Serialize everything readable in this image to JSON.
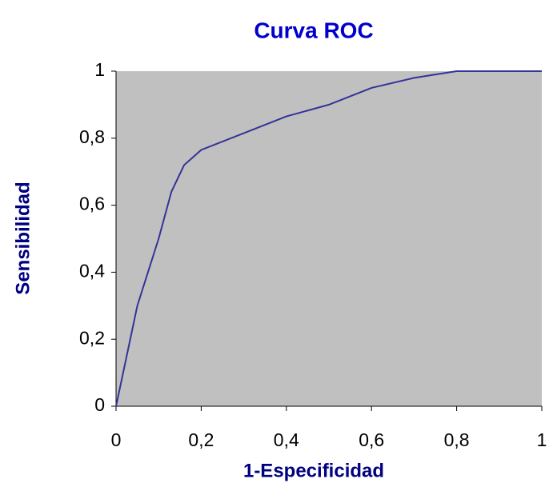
{
  "chart_data": {
    "type": "line",
    "title": "Curva ROC",
    "x_label": "1-Especificidad",
    "y_label": "Sensibilidad",
    "x": [
      0,
      0.05,
      0.1,
      0.13,
      0.16,
      0.2,
      0.3,
      0.4,
      0.5,
      0.6,
      0.7,
      0.8,
      1
    ],
    "series": [
      {
        "name": "ROC",
        "color": "#333399",
        "values": [
          0,
          0.3,
          0.5,
          0.64,
          0.72,
          0.765,
          0.815,
          0.865,
          0.9,
          0.95,
          0.98,
          1,
          1
        ]
      }
    ],
    "xlim": [
      0,
      1
    ],
    "ylim": [
      0,
      1
    ],
    "xticks": [
      0,
      {
        "value": 0.2,
        "label": "0,2"
      },
      {
        "value": 0.4,
        "label": "0,4"
      },
      {
        "value": 0.6,
        "label": "0,6"
      },
      {
        "value": 0.8,
        "label": "0,8"
      },
      1
    ],
    "yticks": [
      0,
      {
        "value": 0.2,
        "label": "0,2"
      },
      {
        "value": 0.4,
        "label": "0,4"
      },
      {
        "value": 0.6,
        "label": "0,6"
      },
      {
        "value": 0.8,
        "label": "0,8"
      },
      1
    ],
    "background": "#c0c0c0"
  }
}
